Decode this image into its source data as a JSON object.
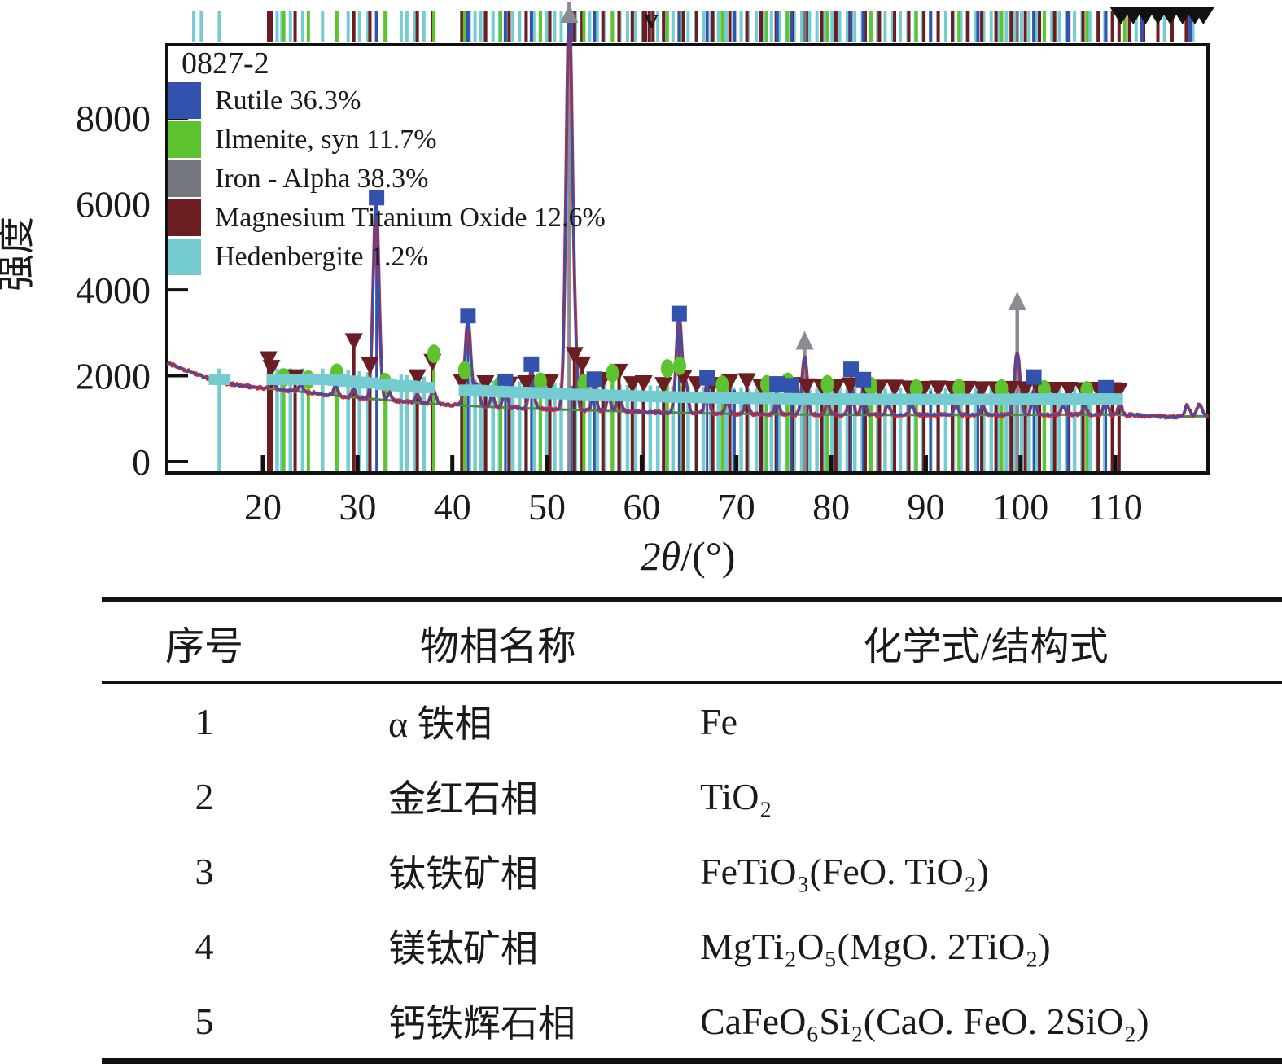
{
  "legend": {
    "sample_id": "0827-2",
    "items": [
      {
        "label": "Rutile 36.3%",
        "color": "#3352ae",
        "phase": "rutile"
      },
      {
        "label": "Ilmenite, syn 11.7%",
        "color": "#5dc42f",
        "phase": "ilmenite"
      },
      {
        "label": "Iron - Alpha 38.3%",
        "color": "#75777f",
        "phase": "iron"
      },
      {
        "label": "Magnesium Titanium Oxide 12.6%",
        "color": "#6b1d22",
        "phase": "mto"
      },
      {
        "label": "Hedenbergite 1.2%",
        "color": "#74ccd0",
        "phase": "hedenbergite"
      }
    ]
  },
  "chart_data": {
    "type": "line",
    "title": "0827-2",
    "ylabel": "强度",
    "xlabel_prefix": "2θ",
    "xlabel_suffix": "/(°)",
    "x_ticks": [
      20,
      30,
      40,
      50,
      60,
      70,
      80,
      90,
      100,
      110
    ],
    "y_ticks": [
      0,
      2000,
      4000,
      6000,
      8000
    ],
    "xlim": [
      9.9,
      119.8
    ],
    "ylim": [
      0,
      9715
    ],
    "grid": false,
    "legend_position": "top-left",
    "curve_colors": {
      "measured": "#e02428",
      "background": "#4e8b47",
      "calculated": "#3352ae"
    },
    "background_points": [
      [
        9.9,
        2300
      ],
      [
        12,
        2120
      ],
      [
        14,
        1950
      ],
      [
        16,
        1830
      ],
      [
        18,
        1760
      ],
      [
        20,
        1715
      ],
      [
        22,
        1675
      ],
      [
        25,
        1605
      ],
      [
        28,
        1530
      ],
      [
        31,
        1468
      ],
      [
        34,
        1415
      ],
      [
        37,
        1360
      ],
      [
        40,
        1318
      ],
      [
        44,
        1275
      ],
      [
        48,
        1240
      ],
      [
        52,
        1210
      ],
      [
        56,
        1185
      ],
      [
        60,
        1158
      ],
      [
        64,
        1138
      ],
      [
        68,
        1120
      ],
      [
        72,
        1108
      ],
      [
        76,
        1098
      ],
      [
        80,
        1092
      ],
      [
        85,
        1088
      ],
      [
        90,
        1085
      ],
      [
        95,
        1085
      ],
      [
        100,
        1090
      ],
      [
        105,
        1093
      ],
      [
        110,
        1094
      ],
      [
        113,
        1070
      ],
      [
        116,
        1045
      ],
      [
        119.8,
        1060
      ]
    ],
    "peaks": [
      [
        21.0,
        1900,
        0.25
      ],
      [
        24.0,
        1800,
        0.2
      ],
      [
        27.7,
        1790,
        0.2
      ],
      [
        29.6,
        1700,
        0.2
      ],
      [
        31.95,
        6070,
        0.3
      ],
      [
        33.4,
        1600,
        0.2
      ],
      [
        36.3,
        1560,
        0.2
      ],
      [
        38.0,
        1700,
        0.25
      ],
      [
        41.65,
        3280,
        0.3
      ],
      [
        42.6,
        1800,
        0.25
      ],
      [
        44.2,
        1560,
        0.2
      ],
      [
        45.6,
        1700,
        0.22
      ],
      [
        48.35,
        2120,
        0.25
      ],
      [
        52.35,
        10600,
        0.33
      ],
      [
        53.0,
        2100,
        0.2
      ],
      [
        55.0,
        1780,
        0.22
      ],
      [
        56.5,
        1560,
        0.2
      ],
      [
        57.6,
        1620,
        0.22
      ],
      [
        63.95,
        3380,
        0.3
      ],
      [
        64.7,
        1760,
        0.22
      ],
      [
        66.9,
        1800,
        0.22
      ],
      [
        69.0,
        1450,
        0.2
      ],
      [
        71.1,
        1500,
        0.2
      ],
      [
        74.3,
        1560,
        0.2
      ],
      [
        77.2,
        2420,
        0.28
      ],
      [
        79.6,
        1400,
        0.2
      ],
      [
        82.1,
        1850,
        0.22
      ],
      [
        83.4,
        1700,
        0.2
      ],
      [
        86.0,
        1350,
        0.2
      ],
      [
        88.5,
        1330,
        0.2
      ],
      [
        93.2,
        1380,
        0.2
      ],
      [
        96.0,
        1330,
        0.2
      ],
      [
        99.65,
        2520,
        0.3
      ],
      [
        101.4,
        1650,
        0.2
      ],
      [
        104.5,
        1300,
        0.2
      ],
      [
        106.8,
        1300,
        0.2
      ],
      [
        109.0,
        1480,
        0.22
      ],
      [
        110.5,
        1350,
        0.2
      ],
      [
        117.6,
        1300,
        0.25
      ],
      [
        118.9,
        1330,
        0.25
      ]
    ],
    "phases": [
      {
        "name": "Rutile",
        "pct": 36.3,
        "color": "#3352ae",
        "marker": "square",
        "ref_lines": [
          32.0,
          41.65,
          45.6,
          48.35,
          52.6,
          55.0,
          63.95,
          66.9,
          69.8,
          74.3,
          75.8,
          82.1,
          83.4,
          90.5,
          95.5,
          101.4,
          105.0,
          109.0
        ],
        "markers": [
          [
            32.0,
            6150
          ],
          [
            41.65,
            3400
          ],
          [
            45.6,
            1870
          ],
          [
            48.35,
            2270
          ],
          [
            55.0,
            1920
          ],
          [
            63.95,
            3450
          ],
          [
            66.9,
            1950
          ],
          [
            74.3,
            1810
          ],
          [
            75.8,
            1770
          ],
          [
            82.1,
            2150
          ],
          [
            83.4,
            1910
          ],
          [
            101.4,
            1970
          ],
          [
            109.0,
            1720
          ]
        ]
      },
      {
        "name": "Ilmenite, syn",
        "pct": 11.7,
        "color": "#5dc42f",
        "marker": "ellipse",
        "ref_lines": [
          22.2,
          24.8,
          27.8,
          32.9,
          38.05,
          41.3,
          45.1,
          49.3,
          53.9,
          56.9,
          62.7,
          64.0,
          68.5,
          73.2,
          75.4,
          79.6,
          84.2,
          89.0,
          93.5,
          98.0,
          102.5,
          107.0
        ],
        "markers": [
          [
            22.2,
            1960
          ],
          [
            24.8,
            1910
          ],
          [
            27.8,
            2070
          ],
          [
            32.9,
            1850
          ],
          [
            38.05,
            2510
          ],
          [
            41.3,
            2130
          ],
          [
            45.1,
            1800
          ],
          [
            49.3,
            1860
          ],
          [
            53.9,
            1820
          ],
          [
            56.9,
            2060
          ],
          [
            62.7,
            2170
          ],
          [
            64.0,
            2230
          ],
          [
            68.5,
            1790
          ],
          [
            73.2,
            1800
          ],
          [
            75.4,
            1860
          ],
          [
            79.6,
            1800
          ],
          [
            84.2,
            1760
          ],
          [
            89.0,
            1700
          ],
          [
            93.5,
            1710
          ],
          [
            98.0,
            1700
          ],
          [
            102.5,
            1680
          ],
          [
            107.0,
            1660
          ]
        ]
      },
      {
        "name": "Iron - Alpha",
        "pct": 38.3,
        "color": "#75777f",
        "marker": "triangle-up",
        "ref_lines": [
          52.35,
          77.2,
          99.65
        ],
        "markers": [
          [
            52.35,
            9900
          ],
          [
            77.2,
            2760
          ],
          [
            99.65,
            3680
          ]
        ]
      },
      {
        "name": "Magnesium Titanium Oxide",
        "pct": 12.6,
        "color": "#6b1d22",
        "marker": "triangle-down",
        "ref_lines": [
          20.6,
          20.9,
          23.4,
          29.6,
          31.3,
          36.3,
          37.9,
          41.0,
          43.5,
          46.0,
          47.8,
          50.3,
          52.9,
          53.7,
          55.9,
          57.6,
          59.0,
          60.2,
          62.3,
          64.4,
          65.8,
          67.5,
          69.3,
          71.1,
          72.6,
          74.2,
          75.9,
          77.4,
          79.0,
          80.5,
          82.0,
          83.6,
          85.1,
          86.7,
          88.2,
          89.8,
          91.3,
          92.8,
          94.4,
          95.9,
          97.4,
          99.0,
          100.5,
          102.0,
          103.6,
          105.1,
          106.6,
          108.2,
          109.7,
          110.4
        ],
        "markers": [
          [
            20.6,
            2380
          ],
          [
            20.9,
            2180
          ],
          [
            23.4,
            1960
          ],
          [
            29.6,
            2800
          ],
          [
            31.3,
            2240
          ],
          [
            36.3,
            1960
          ],
          [
            37.9,
            2320
          ],
          [
            41.0,
            1850
          ],
          [
            43.5,
            1820
          ],
          [
            46.0,
            1790
          ],
          [
            47.8,
            1820
          ],
          [
            50.3,
            1840
          ],
          [
            52.9,
            2480
          ],
          [
            53.7,
            2260
          ],
          [
            55.9,
            1900
          ],
          [
            57.6,
            2090
          ],
          [
            59.0,
            1800
          ],
          [
            60.2,
            1820
          ],
          [
            62.3,
            1780
          ],
          [
            64.4,
            1950
          ],
          [
            65.8,
            1800
          ],
          [
            67.5,
            1780
          ],
          [
            69.3,
            1860
          ],
          [
            71.1,
            1870
          ],
          [
            72.6,
            1740
          ],
          [
            74.2,
            1760
          ],
          [
            75.9,
            1780
          ],
          [
            77.4,
            1750
          ],
          [
            79.0,
            1740
          ],
          [
            80.5,
            1730
          ],
          [
            82.0,
            1770
          ],
          [
            83.6,
            1740
          ],
          [
            85.1,
            1720
          ],
          [
            86.7,
            1720
          ],
          [
            88.2,
            1700
          ],
          [
            89.8,
            1690
          ],
          [
            91.3,
            1700
          ],
          [
            92.8,
            1690
          ],
          [
            94.4,
            1690
          ],
          [
            95.9,
            1680
          ],
          [
            97.4,
            1680
          ],
          [
            99.0,
            1690
          ],
          [
            100.5,
            1680
          ],
          [
            102.0,
            1670
          ],
          [
            103.6,
            1670
          ],
          [
            105.1,
            1670
          ],
          [
            106.6,
            1660
          ],
          [
            108.2,
            1670
          ],
          [
            109.7,
            1660
          ],
          [
            110.4,
            1650
          ]
        ]
      },
      {
        "name": "Hedenbergite",
        "pct": 1.2,
        "color": "#74ccd0",
        "marker": "plus",
        "ref_lines": [
          15.4,
          21.5,
          22.0,
          22.9,
          24.2,
          26.3,
          27.9,
          29.0,
          30.2,
          31.1,
          33.0,
          34.6,
          35.2,
          36.0,
          37.0,
          41.8,
          42.4,
          43.0,
          43.6,
          44.3,
          45.0,
          45.7,
          46.4,
          47.1,
          47.8,
          48.6,
          49.3,
          50.0,
          50.8,
          51.5,
          53.0,
          53.8,
          54.5,
          55.3,
          56.1,
          56.9,
          57.7,
          58.5,
          59.3,
          60.1,
          60.9,
          61.7,
          62.5,
          63.3,
          64.1,
          64.9,
          65.7,
          66.5,
          67.3,
          68.1,
          68.9,
          69.7,
          70.5,
          71.3,
          72.1,
          72.9,
          73.7,
          74.5,
          75.3,
          76.1,
          76.9,
          77.7,
          78.5,
          79.3,
          80.1,
          80.9,
          81.7,
          82.5,
          83.3,
          84.1,
          84.9,
          85.7,
          86.5,
          87.3,
          88.1,
          88.9,
          89.7,
          90.5,
          91.3,
          92.1,
          92.9,
          93.7,
          94.5,
          95.3,
          96.1,
          96.9,
          97.7,
          98.5,
          99.3,
          100.1,
          100.9,
          101.7,
          102.5,
          103.3,
          104.1,
          104.9,
          105.7,
          106.5,
          107.3,
          108.1,
          108.9,
          109.7
        ],
        "markers": []
      }
    ],
    "annotations": {
      "v_label": "v",
      "v_mark_theta": 61.0,
      "offscale_marker_thetas": [
        110.6,
        111.9,
        113.2,
        114.5,
        115.8,
        117.1,
        118.4,
        119.3
      ]
    },
    "top_ticks_extra": {
      "mto": [
        60.4,
        60.8,
        61.2,
        111.5,
        113.0,
        114.5,
        116.0,
        117.5
      ],
      "hedenbergite": [
        12.7,
        13.5,
        112.2,
        115.2,
        118.2
      ],
      "rutile": [
        112.8,
        117.9
      ],
      "ilmenite": [
        111.0
      ]
    }
  },
  "table": {
    "headers": [
      "序号",
      "物相名称",
      "化学式/结构式"
    ],
    "rows": [
      {
        "no": "1",
        "name": "α 铁相",
        "formula": "Fe"
      },
      {
        "no": "2",
        "name": "金红石相",
        "formula": "TiO₂"
      },
      {
        "no": "3",
        "name": "钛铁矿相",
        "formula": "FeTiO₃(FeO. TiO₂)"
      },
      {
        "no": "4",
        "name": "镁钛矿相",
        "formula": "MgTi₂O₅(MgO. 2TiO₂)"
      },
      {
        "no": "5",
        "name": "钙铁辉石相",
        "formula": "CaFeO₆Si₂(CaO. FeO. 2SiO₂)"
      }
    ]
  }
}
